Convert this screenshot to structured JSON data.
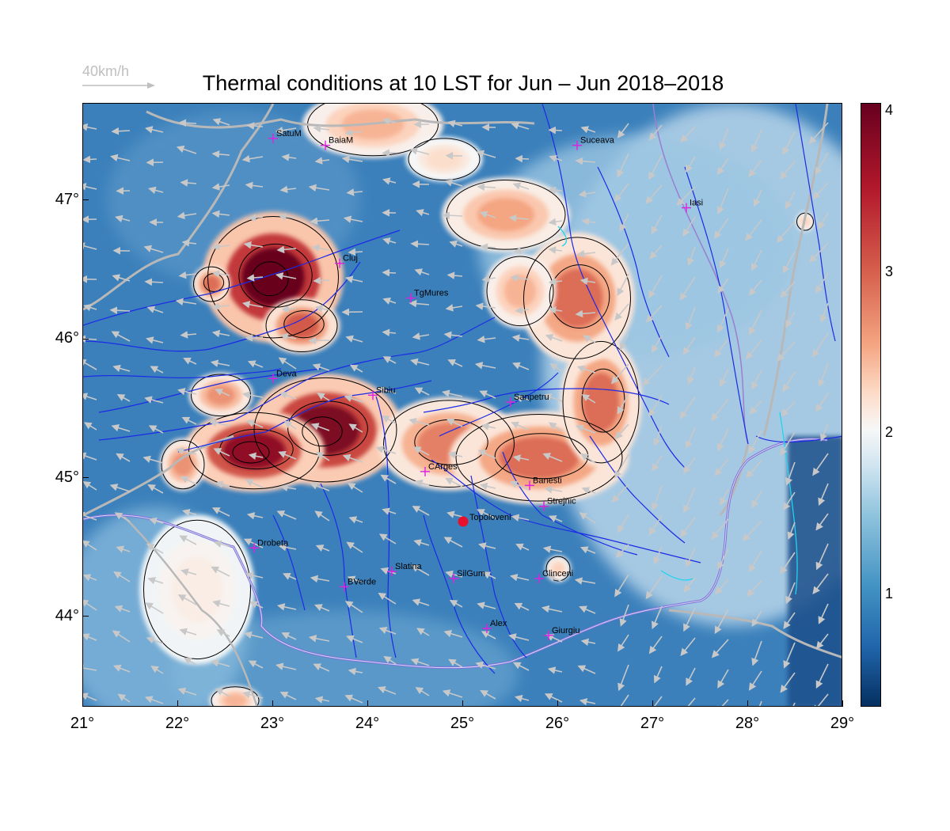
{
  "title": "Thermal conditions at 10 LST for Jun – Jun  2018–2018",
  "wind_key": {
    "label": "40km/h"
  },
  "colorbar": {
    "ticks": [
      "4",
      "3",
      "2",
      "1"
    ],
    "range": [
      0.3,
      4.05
    ],
    "colors": [
      "#053061",
      "#2166ac",
      "#4393c3",
      "#92c5de",
      "#d1e5f0",
      "#f7f7f7",
      "#fddbc7",
      "#f4a582",
      "#d6604d",
      "#b2182b",
      "#67001f"
    ]
  },
  "axes": {
    "x_ticks": [
      "21°",
      "22°",
      "23°",
      "24°",
      "25°",
      "26°",
      "27°",
      "28°",
      "29°"
    ],
    "y_ticks": [
      "47°",
      "46°",
      "45°",
      "44°"
    ],
    "lon_range": [
      21,
      29
    ],
    "lat_range": [
      43.35,
      47.7
    ]
  },
  "cities": [
    {
      "name": "SatuM",
      "lon": 23.0,
      "lat": 47.45
    },
    {
      "name": "BaiaM",
      "lon": 23.55,
      "lat": 47.4
    },
    {
      "name": "Suceava",
      "lon": 26.2,
      "lat": 47.4
    },
    {
      "name": "Iasi",
      "lon": 27.35,
      "lat": 46.95
    },
    {
      "name": "Cluj",
      "lon": 23.7,
      "lat": 46.55
    },
    {
      "name": "TgMures",
      "lon": 24.45,
      "lat": 46.3
    },
    {
      "name": "Deva",
      "lon": 23.0,
      "lat": 45.72
    },
    {
      "name": "Sibiu",
      "lon": 24.05,
      "lat": 45.6
    },
    {
      "name": "Sanpetru",
      "lon": 25.5,
      "lat": 45.55
    },
    {
      "name": "CArges",
      "lon": 24.6,
      "lat": 45.05
    },
    {
      "name": "Banesti",
      "lon": 25.7,
      "lat": 44.95
    },
    {
      "name": "Strejnic",
      "lon": 25.85,
      "lat": 44.8
    },
    {
      "name": "Drobeta",
      "lon": 22.8,
      "lat": 44.5
    },
    {
      "name": "Slatina",
      "lon": 24.25,
      "lat": 44.33
    },
    {
      "name": "SilGum",
      "lon": 24.9,
      "lat": 44.28
    },
    {
      "name": "Clinceni",
      "lon": 25.8,
      "lat": 44.28
    },
    {
      "name": "BVerde",
      "lon": 23.75,
      "lat": 44.22
    },
    {
      "name": "Alex",
      "lon": 25.25,
      "lat": 43.92
    },
    {
      "name": "Giurgiu",
      "lon": 25.9,
      "lat": 43.87
    }
  ],
  "site": {
    "name": "Topoloveni",
    "lon": 25.0,
    "lat": 44.69,
    "color": "#e8102a"
  },
  "colors": {
    "sea": "#1c4f8a",
    "rivers": "#1b2be6",
    "borders": "#b8b8b8",
    "contours": "#000000",
    "vectors": "#c8c8c8",
    "city_marker": "#e020e0",
    "coast": "#22d3ee"
  },
  "thermal_regions": [
    {
      "lon": 23.0,
      "lat": 46.45,
      "rx": 0.55,
      "ry": 0.35,
      "value": 4.0
    },
    {
      "lon": 22.35,
      "lat": 46.4,
      "rx": 0.15,
      "ry": 0.1,
      "value": 3.2
    },
    {
      "lon": 23.3,
      "lat": 46.1,
      "rx": 0.3,
      "ry": 0.15,
      "value": 3.3
    },
    {
      "lon": 23.55,
      "lat": 45.35,
      "rx": 0.6,
      "ry": 0.3,
      "value": 3.9
    },
    {
      "lon": 22.8,
      "lat": 45.2,
      "rx": 0.55,
      "ry": 0.22,
      "value": 3.8
    },
    {
      "lon": 22.45,
      "lat": 45.6,
      "rx": 0.25,
      "ry": 0.12,
      "value": 3.0
    },
    {
      "lon": 22.05,
      "lat": 45.1,
      "rx": 0.18,
      "ry": 0.14,
      "value": 3.0
    },
    {
      "lon": 24.85,
      "lat": 45.25,
      "rx": 0.55,
      "ry": 0.25,
      "value": 3.1
    },
    {
      "lon": 25.8,
      "lat": 45.15,
      "rx": 0.7,
      "ry": 0.25,
      "value": 3.2
    },
    {
      "lon": 26.45,
      "lat": 45.55,
      "rx": 0.32,
      "ry": 0.35,
      "value": 3.2
    },
    {
      "lon": 26.2,
      "lat": 46.3,
      "rx": 0.45,
      "ry": 0.35,
      "value": 3.2
    },
    {
      "lon": 25.45,
      "lat": 46.9,
      "rx": 0.5,
      "ry": 0.2,
      "value": 2.9
    },
    {
      "lon": 25.6,
      "lat": 46.35,
      "rx": 0.28,
      "ry": 0.2,
      "value": 2.8
    },
    {
      "lon": 24.05,
      "lat": 47.55,
      "rx": 0.55,
      "ry": 0.18,
      "value": 2.8
    },
    {
      "lon": 24.8,
      "lat": 47.3,
      "rx": 0.3,
      "ry": 0.12,
      "value": 2.5
    },
    {
      "lon": 22.2,
      "lat": 44.2,
      "rx": 0.45,
      "ry": 0.4,
      "value": 2.3
    },
    {
      "lon": 28.6,
      "lat": 46.85,
      "rx": 0.07,
      "ry": 0.05,
      "value": 2.6
    },
    {
      "lon": 26.0,
      "lat": 44.35,
      "rx": 0.1,
      "ry": 0.07,
      "value": 2.6
    },
    {
      "lon": 22.6,
      "lat": 43.4,
      "rx": 0.2,
      "ry": 0.08,
      "value": 2.8
    }
  ]
}
